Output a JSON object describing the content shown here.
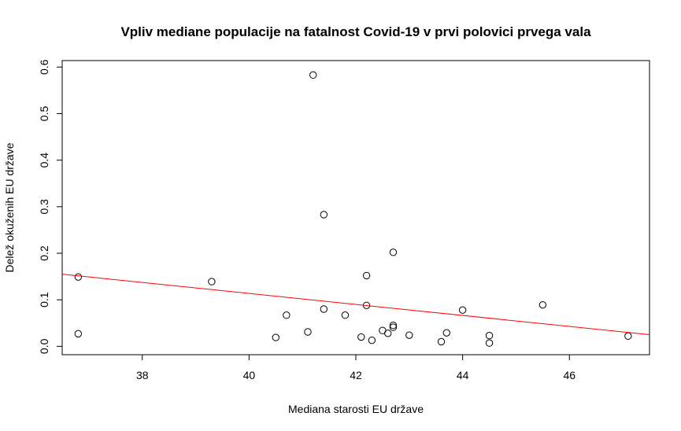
{
  "chart_data": {
    "type": "scatter",
    "title": "Vpliv mediane populacije na fatalnost Covid-19 v prvi polovici prvega vala",
    "xlabel": "Mediana starosti EU države",
    "ylabel": "Delež okuženih EU države",
    "xlim": [
      36.5,
      47.5
    ],
    "ylim": [
      -0.018,
      0.614
    ],
    "xticks": [
      38,
      40,
      42,
      44,
      46
    ],
    "yticks": [
      0.0,
      0.1,
      0.2,
      0.3,
      0.4,
      0.5,
      0.6
    ],
    "xtick_labels": [
      "38",
      "40",
      "42",
      "44",
      "46"
    ],
    "ytick_labels": [
      "0.0",
      "0.1",
      "0.2",
      "0.3",
      "0.4",
      "0.5",
      "0.6"
    ],
    "points": [
      {
        "x": 36.8,
        "y": 0.149
      },
      {
        "x": 36.8,
        "y": 0.027
      },
      {
        "x": 39.3,
        "y": 0.139
      },
      {
        "x": 40.5,
        "y": 0.019
      },
      {
        "x": 40.7,
        "y": 0.067
      },
      {
        "x": 41.1,
        "y": 0.031
      },
      {
        "x": 41.2,
        "y": 0.583
      },
      {
        "x": 41.4,
        "y": 0.283
      },
      {
        "x": 41.4,
        "y": 0.08
      },
      {
        "x": 41.8,
        "y": 0.067
      },
      {
        "x": 42.1,
        "y": 0.02
      },
      {
        "x": 42.2,
        "y": 0.152
      },
      {
        "x": 42.2,
        "y": 0.088
      },
      {
        "x": 42.3,
        "y": 0.013
      },
      {
        "x": 42.5,
        "y": 0.034
      },
      {
        "x": 42.6,
        "y": 0.028
      },
      {
        "x": 42.7,
        "y": 0.202
      },
      {
        "x": 42.7,
        "y": 0.045
      },
      {
        "x": 42.7,
        "y": 0.041
      },
      {
        "x": 43.0,
        "y": 0.024
      },
      {
        "x": 43.6,
        "y": 0.01
      },
      {
        "x": 43.7,
        "y": 0.029
      },
      {
        "x": 44.0,
        "y": 0.078
      },
      {
        "x": 44.5,
        "y": 0.023
      },
      {
        "x": 44.5,
        "y": 0.007
      },
      {
        "x": 45.5,
        "y": 0.089
      },
      {
        "x": 47.1,
        "y": 0.022
      }
    ],
    "regression_line": {
      "x": [
        36.5,
        47.5
      ],
      "y": [
        0.155,
        0.025
      ],
      "color": "#ff0000"
    }
  }
}
